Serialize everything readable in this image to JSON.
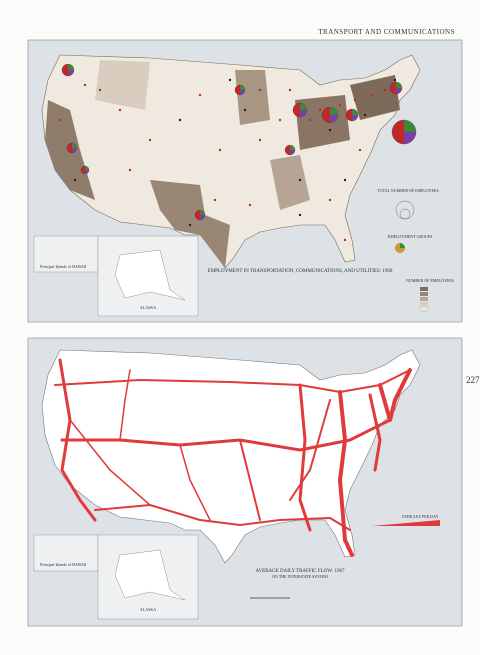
{
  "header": {
    "section_title": "TRANSPORT AND COMMUNICATIONS",
    "page_number": "227"
  },
  "map_top": {
    "title": "EMPLOYMENT IN TRANSPORTATION, COMMUNICATIONS, AND UTILITIES: 1960",
    "legend": {
      "total_title": "TOTAL NUMBER OF EMPLOYEES",
      "groups_title": "EMPLOYMENT GROUPS",
      "states_title": "NUMBER OF EMPLOYEES"
    },
    "inset_hawaii": "Principal Islands of HAWAII",
    "inset_alaska": "ALASKA"
  },
  "map_bottom": {
    "title": "AVERAGE DAILY TRAFFIC FLOW: 1967",
    "subtitle": "ON THE INTERSTATE SYSTEM",
    "legend_title": "VEHICLES PER DAY",
    "inset_hawaii": "Principal Islands of HAWAII",
    "inset_alaska": "ALASKA"
  }
}
